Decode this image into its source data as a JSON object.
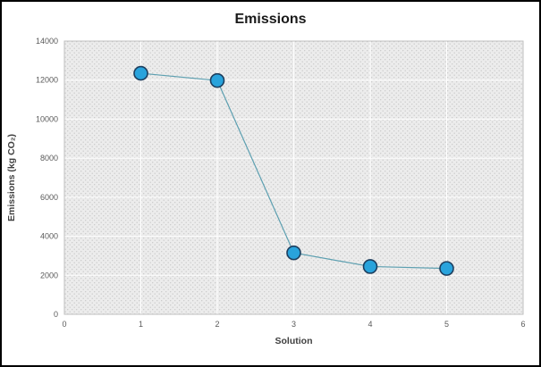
{
  "chart_data": {
    "type": "line",
    "title": "Emissions",
    "xlabel": "Solution",
    "ylabel": "Emissions (kg CO₂)",
    "x": [
      1,
      2,
      3,
      4,
      5
    ],
    "values": [
      12350,
      11980,
      3150,
      2450,
      2350
    ],
    "xlim": [
      0,
      6
    ],
    "ylim": [
      0,
      14000
    ],
    "x_ticks": [
      0,
      1,
      2,
      3,
      4,
      5,
      6
    ],
    "y_ticks": [
      0,
      2000,
      4000,
      6000,
      8000,
      10000,
      12000,
      14000
    ],
    "grid": true,
    "legend": "none",
    "colors": {
      "marker_fill": "#29A3DC",
      "marker_stroke": "#1D3E5E",
      "line": "#5C9FB0",
      "grid": "#ffffff",
      "plot_bg": "#ececec",
      "plot_dot": "#c9c9c9",
      "tick_text": "#595959",
      "axis_label_text": "#404040",
      "plot_border": "#bfbfbf"
    },
    "marker_radius": 7.5
  }
}
